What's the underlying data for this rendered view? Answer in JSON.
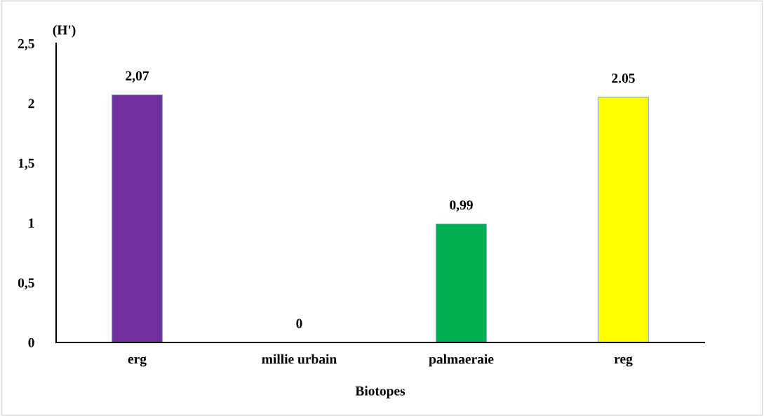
{
  "chart_data": {
    "type": "bar",
    "xlabel": "Biotopes",
    "ylabel": "(H')",
    "categories": [
      "erg",
      "millie urbain",
      "palmaeraie",
      "reg"
    ],
    "values": [
      2.07,
      0,
      0.99,
      2.05
    ],
    "value_labels": [
      "2,07",
      "0",
      "0,99",
      "2.05"
    ],
    "colors": [
      "#7030a0",
      "#5b9bd5",
      "#00b050",
      "#ffff00"
    ],
    "ylim": [
      0,
      2.5
    ],
    "yticks": [
      0,
      {
        "value": 0.5,
        "label": "0,5"
      },
      1,
      {
        "value": 1.5,
        "label": "1,5"
      },
      2,
      {
        "value": 2.5,
        "label": "2,5"
      }
    ],
    "grid": false,
    "legend": false
  }
}
